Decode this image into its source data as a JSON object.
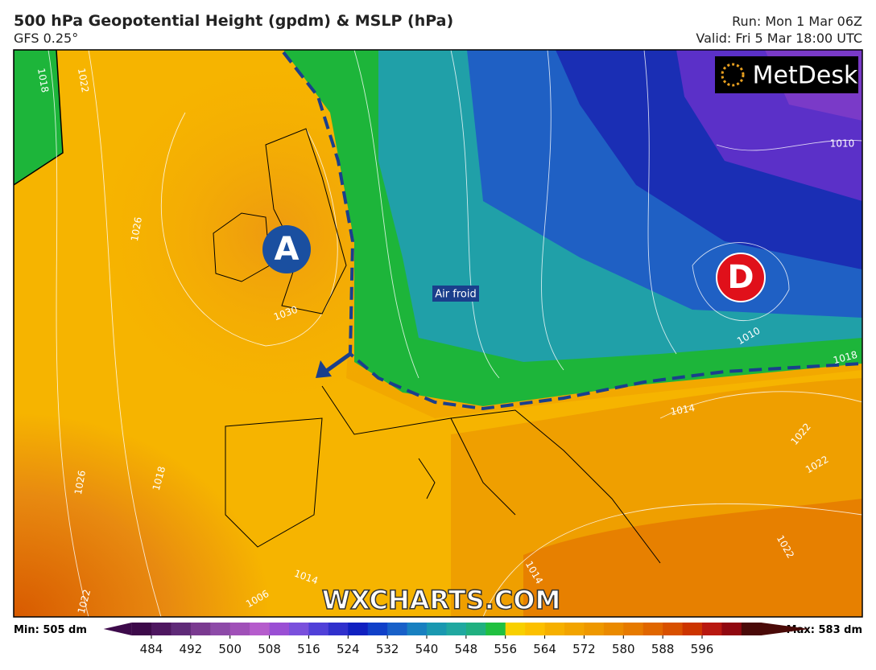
{
  "header": {
    "title": "500 hPa Geopotential Height (gpdm) & MSLP (hPa)",
    "model": "GFS 0.25°",
    "run": "Run: Mon 1 Mar 06Z",
    "valid": "Valid: Fri 5 Mar 18:00 UTC"
  },
  "map": {
    "logo": "MetDesk",
    "watermark": "WXCHARTS.COM",
    "high": "A",
    "low": "D",
    "cold_air": "Air froid",
    "isobar_labels": [
      "1018",
      "1022",
      "1026",
      "1030",
      "1010",
      "1010",
      "1018",
      "1014",
      "1022",
      "1022",
      "1026",
      "1018",
      "1014",
      "1022",
      "1022",
      "1006",
      "1014"
    ]
  },
  "legend": {
    "min": "Min: 505 dm",
    "max": "Max: 583 dm",
    "ticks": [
      484,
      492,
      500,
      508,
      516,
      524,
      532,
      540,
      548,
      556,
      564,
      572,
      580,
      588,
      596
    ]
  }
}
